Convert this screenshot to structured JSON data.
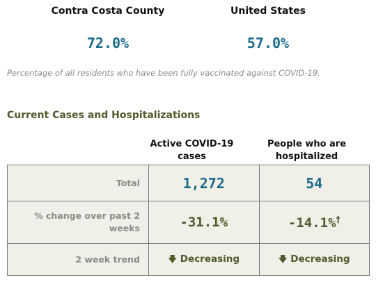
{
  "vaccination": {
    "county_label": "Contra Costa County",
    "county_value": "72.0%",
    "us_label": "United States",
    "us_value": "57.0%",
    "note": "Percentage of all residents who have been fully vaccinated against COVID-19."
  },
  "cases": {
    "title": "Current Cases and Hospitalizations",
    "columns": {
      "active": "Active COVID-19 cases",
      "hospitalized": "People who are hospitalized"
    },
    "rows": {
      "total": {
        "label": "Total",
        "active": "1,272",
        "hospitalized": "54"
      },
      "change": {
        "label": "% change over past 2 weeks",
        "active": "-31.1%",
        "hospitalized": "-14.1%",
        "hospitalized_marker": "†"
      },
      "trend": {
        "label": "2 week trend",
        "active": "Decreasing",
        "hospitalized": "Decreasing",
        "icon": "arrow-down-icon"
      }
    }
  },
  "colors": {
    "value_blue": "#1b6a8a",
    "olive": "#4f5a2c",
    "muted_gray": "#8a8a8a",
    "table_bg": "#f1f0e8"
  }
}
